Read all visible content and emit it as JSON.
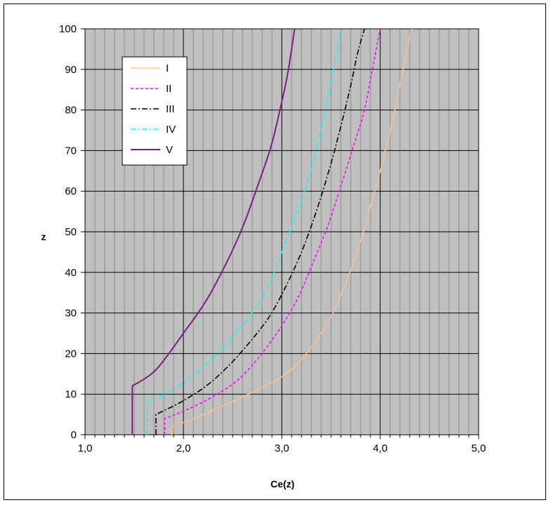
{
  "chart_data": {
    "type": "line",
    "title": "",
    "xlabel": "Ce(z)",
    "ylabel": "z",
    "xlim": [
      1.0,
      5.0
    ],
    "ylim": [
      0,
      100
    ],
    "x_ticks": [
      "1,0",
      "2,0",
      "3,0",
      "4,0",
      "5,0"
    ],
    "y_ticks": [
      "0",
      "10",
      "20",
      "30",
      "40",
      "50",
      "60",
      "70",
      "80",
      "90",
      "100"
    ],
    "grid": true,
    "plot_background": "#c0c0c0",
    "legend_placement": "top-left",
    "series": [
      {
        "name": "I",
        "color": "#fac090",
        "dash": "solid",
        "points": [
          [
            1.88,
            0
          ],
          [
            1.88,
            2
          ],
          [
            2.11,
            4
          ],
          [
            2.39,
            7
          ],
          [
            2.66,
            10
          ],
          [
            2.98,
            14
          ],
          [
            3.18,
            18
          ],
          [
            3.37,
            24
          ],
          [
            3.52,
            30
          ],
          [
            3.66,
            38
          ],
          [
            3.79,
            47
          ],
          [
            3.92,
            58
          ],
          [
            4.0,
            65
          ],
          [
            4.13,
            78
          ],
          [
            4.24,
            91
          ],
          [
            4.32,
            100
          ]
        ]
      },
      {
        "name": "II",
        "color": "#ff00ff",
        "dash": "dashed",
        "points": [
          [
            1.81,
            0
          ],
          [
            1.81,
            4
          ],
          [
            2.02,
            6
          ],
          [
            2.27,
            9
          ],
          [
            2.53,
            13
          ],
          [
            2.73,
            18
          ],
          [
            2.89,
            23
          ],
          [
            3.03,
            28
          ],
          [
            3.17,
            34
          ],
          [
            3.31,
            42
          ],
          [
            3.46,
            51
          ],
          [
            3.61,
            62
          ],
          [
            3.74,
            72
          ],
          [
            3.84,
            80
          ],
          [
            3.92,
            90
          ],
          [
            4.0,
            100
          ]
        ]
      },
      {
        "name": "III",
        "color": "#000000",
        "dash": "dashdot",
        "points": [
          [
            1.72,
            0
          ],
          [
            1.72,
            5
          ],
          [
            1.97,
            8
          ],
          [
            2.23,
            12
          ],
          [
            2.46,
            17
          ],
          [
            2.68,
            23
          ],
          [
            2.87,
            29
          ],
          [
            3.03,
            36
          ],
          [
            3.2,
            45
          ],
          [
            3.35,
            55
          ],
          [
            3.49,
            66
          ],
          [
            3.6,
            76
          ],
          [
            3.7,
            86
          ],
          [
            3.77,
            94
          ],
          [
            3.84,
            100
          ]
        ]
      },
      {
        "name": "IV",
        "color": "#00ffff",
        "dash": "dashdot",
        "points": [
          [
            1.63,
            0
          ],
          [
            1.63,
            8
          ],
          [
            1.88,
            11
          ],
          [
            2.12,
            15
          ],
          [
            2.39,
            21
          ],
          [
            2.6,
            27
          ],
          [
            2.83,
            35
          ],
          [
            3.0,
            45
          ],
          [
            3.13,
            53
          ],
          [
            3.27,
            63
          ],
          [
            3.4,
            75
          ],
          [
            3.48,
            84
          ],
          [
            3.55,
            93
          ],
          [
            3.6,
            100
          ]
        ]
      },
      {
        "name": "V",
        "color": "#7f1d82",
        "dash": "solid",
        "points": [
          [
            1.48,
            0
          ],
          [
            1.48,
            12
          ],
          [
            1.72,
            16
          ],
          [
            2.0,
            25
          ],
          [
            2.23,
            33
          ],
          [
            2.43,
            42
          ],
          [
            2.6,
            51
          ],
          [
            2.75,
            61
          ],
          [
            2.89,
            71
          ],
          [
            2.99,
            81
          ],
          [
            3.06,
            89
          ],
          [
            3.13,
            100
          ]
        ]
      }
    ]
  }
}
